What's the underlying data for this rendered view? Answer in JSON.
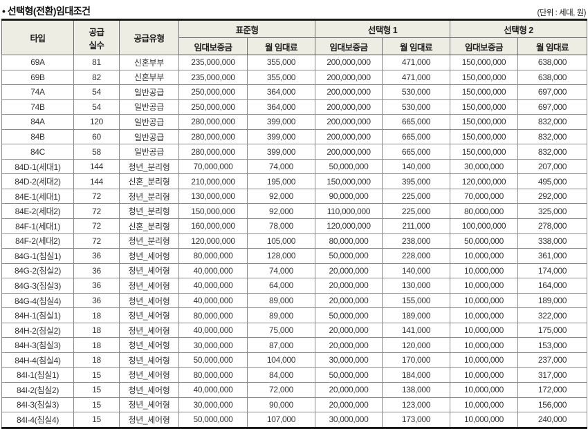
{
  "page": {
    "title": "• 선택형(전환)임대조건",
    "unit_label": "(단위 : 세대, 원)"
  },
  "colors": {
    "header_bg": "#eeede3",
    "outer_border": "#1a1a1a",
    "grid_border": "#8a8a8a",
    "text": "#333333"
  },
  "table": {
    "header": {
      "type": "타입",
      "supply_count_line1": "공급",
      "supply_count_line2": "실수",
      "supply_type": "공급유형",
      "group_standard": "표준형",
      "group_option1": "선택형 1",
      "group_option2": "선택형 2",
      "deposit": "임대보증금",
      "monthly_rent": "월 임대료"
    },
    "col_keys": [
      "type-cell",
      "supply-count-cell",
      "supply-type-cell",
      "standard-deposit-cell",
      "standard-rent-cell",
      "option1-deposit-cell",
      "option1-rent-cell",
      "option2-deposit-cell",
      "option2-rent-cell"
    ],
    "rows": [
      [
        "69A",
        "81",
        "신혼부부",
        "235,000,000",
        "355,000",
        "200,000,000",
        "471,000",
        "150,000,000",
        "638,000"
      ],
      [
        "69B",
        "82",
        "신혼부부",
        "235,000,000",
        "355,000",
        "200,000,000",
        "471,000",
        "150,000,000",
        "638,000"
      ],
      [
        "74A",
        "54",
        "일반공급",
        "250,000,000",
        "364,000",
        "200,000,000",
        "530,000",
        "150,000,000",
        "697,000"
      ],
      [
        "74B",
        "54",
        "일반공급",
        "250,000,000",
        "364,000",
        "200,000,000",
        "530,000",
        "150,000,000",
        "697,000"
      ],
      [
        "84A",
        "120",
        "일반공급",
        "280,000,000",
        "399,000",
        "200,000,000",
        "665,000",
        "150,000,000",
        "832,000"
      ],
      [
        "84B",
        "60",
        "일반공급",
        "280,000,000",
        "399,000",
        "200,000,000",
        "665,000",
        "150,000,000",
        "832,000"
      ],
      [
        "84C",
        "58",
        "일반공급",
        "280,000,000",
        "399,000",
        "200,000,000",
        "665,000",
        "150,000,000",
        "832,000"
      ],
      [
        "84D-1(세대1)",
        "144",
        "청년_분리형",
        "70,000,000",
        "74,000",
        "50,000,000",
        "140,000",
        "30,000,000",
        "207,000"
      ],
      [
        "84D-2(세대2)",
        "144",
        "신혼_분리형",
        "210,000,000",
        "195,000",
        "150,000,000",
        "395,000",
        "120,000,000",
        "495,000"
      ],
      [
        "84E-1(세대1)",
        "72",
        "청년_분리형",
        "130,000,000",
        "92,000",
        "90,000,000",
        "225,000",
        "70,000,000",
        "292,000"
      ],
      [
        "84E-2(세대2)",
        "72",
        "청년_분리형",
        "150,000,000",
        "92,000",
        "110,000,000",
        "225,000",
        "80,000,000",
        "325,000"
      ],
      [
        "84F-1(세대1)",
        "72",
        "신혼_분리형",
        "160,000,000",
        "78,000",
        "120,000,000",
        "211,000",
        "100,000,000",
        "278,000"
      ],
      [
        "84F-2(세대2)",
        "72",
        "청년_분리형",
        "120,000,000",
        "105,000",
        "80,000,000",
        "238,000",
        "50,000,000",
        "338,000"
      ],
      [
        "84G-1(침실1)",
        "36",
        "청년_셰어형",
        "80,000,000",
        "128,000",
        "50,000,000",
        "228,000",
        "10,000,000",
        "361,000"
      ],
      [
        "84G-2(침실2)",
        "36",
        "청년_셰어형",
        "40,000,000",
        "74,000",
        "20,000,000",
        "140,000",
        "10,000,000",
        "174,000"
      ],
      [
        "84G-3(침실3)",
        "36",
        "청년_셰어형",
        "40,000,000",
        "64,000",
        "20,000,000",
        "130,000",
        "10,000,000",
        "164,000"
      ],
      [
        "84G-4(침실4)",
        "36",
        "청년_셰어형",
        "40,000,000",
        "89,000",
        "20,000,000",
        "155,000",
        "10,000,000",
        "189,000"
      ],
      [
        "84H-1(침실1)",
        "18",
        "청년_셰어형",
        "80,000,000",
        "89,000",
        "50,000,000",
        "189,000",
        "10,000,000",
        "322,000"
      ],
      [
        "84H-2(침실2)",
        "18",
        "청년_셰어형",
        "40,000,000",
        "75,000",
        "20,000,000",
        "141,000",
        "10,000,000",
        "175,000"
      ],
      [
        "84H-3(침실3)",
        "18",
        "청년_셰어형",
        "30,000,000",
        "87,000",
        "20,000,000",
        "120,000",
        "10,000,000",
        "153,000"
      ],
      [
        "84H-4(침실4)",
        "18",
        "청년_셰어형",
        "50,000,000",
        "104,000",
        "30,000,000",
        "170,000",
        "10,000,000",
        "237,000"
      ],
      [
        "84I-1(침실1)",
        "15",
        "청년_셰어형",
        "80,000,000",
        "84,000",
        "50,000,000",
        "184,000",
        "10,000,000",
        "317,000"
      ],
      [
        "84I-2(침실2)",
        "15",
        "청년_셰어형",
        "40,000,000",
        "72,000",
        "20,000,000",
        "138,000",
        "10,000,000",
        "172,000"
      ],
      [
        "84I-3(침실3)",
        "15",
        "청년_셰어형",
        "30,000,000",
        "90,000",
        "20,000,000",
        "123,000",
        "10,000,000",
        "156,000"
      ],
      [
        "84I-4(침실4)",
        "15",
        "청년_셰어형",
        "50,000,000",
        "107,000",
        "30,000,000",
        "173,000",
        "10,000,000",
        "240,000"
      ]
    ]
  }
}
